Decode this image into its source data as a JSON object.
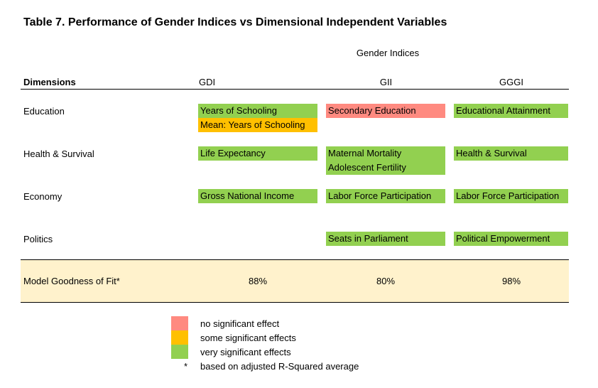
{
  "title": "Table 7. Performance of Gender Indices vs Dimensional Independent Variables",
  "group_header": "Gender Indices",
  "columns": {
    "dimension": "Dimensions",
    "gdi": "GDI",
    "gii": "GII",
    "gggi": "GGGI"
  },
  "rows": [
    {
      "label": "Education"
    },
    {
      "label": "Health & Survival"
    },
    {
      "label": "Economy"
    },
    {
      "label": "Politics"
    }
  ],
  "cells": {
    "education": {
      "gdi": [
        "Years of Schooling",
        "Mean: Years of Schooling"
      ],
      "gii": [
        "Secondary Education"
      ],
      "gggi": [
        "Educational Attainment"
      ]
    },
    "health": {
      "gdi": [
        "Life Expectancy"
      ],
      "gii": [
        "Maternal Mortality",
        "Adolescent Fertility"
      ],
      "gggi": [
        "Health & Survival"
      ]
    },
    "economy": {
      "gdi": [
        "Gross National Income"
      ],
      "gii": [
        "Labor Force Participation"
      ],
      "gggi": [
        "Labor Force Participation"
      ]
    },
    "politics": {
      "gii": [
        "Seats in Parliament"
      ],
      "gggi": [
        "Political Empowerment"
      ]
    }
  },
  "fit": {
    "label": "Model Goodness of Fit*",
    "gdi": "88%",
    "gii": "80%",
    "gggi": "98%"
  },
  "legend": [
    {
      "text": "no significant effect",
      "color": "#ff8a80"
    },
    {
      "text": "some significant effects",
      "color": "#ffc000"
    },
    {
      "text": "very significant effects",
      "color": "#92d050"
    }
  ],
  "footnote": {
    "marker": "*",
    "text": "based on adjusted R-Squared average"
  }
}
